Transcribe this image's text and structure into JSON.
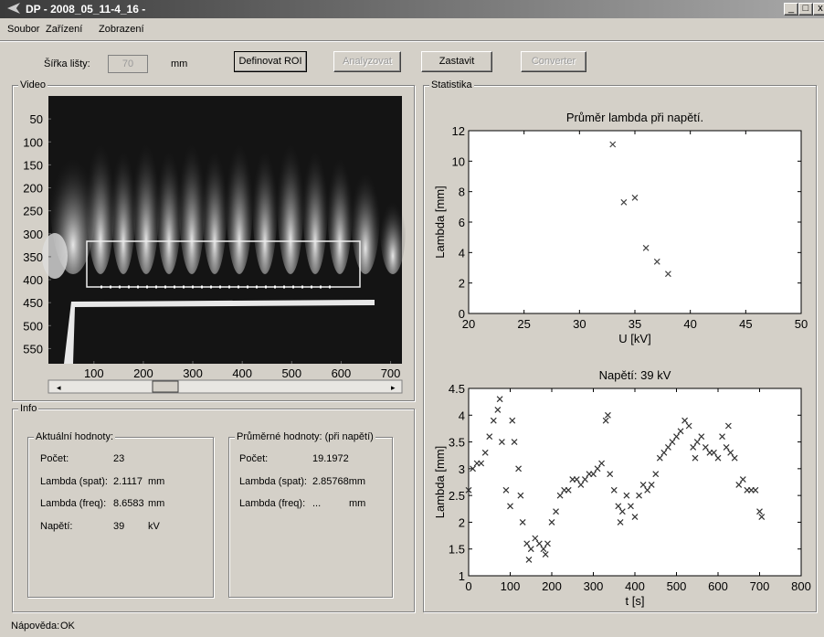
{
  "window": {
    "title": "DP - 2008_05_11-4_16 -"
  },
  "menu": [
    "Soubor",
    "Zařízení",
    "Zobrazení"
  ],
  "toolbar": {
    "width_label": "Šířka lišty:",
    "width_value": "70",
    "width_unit": "mm",
    "buttons": [
      "Definovat ROI",
      "Analyzovat",
      "Zastavit",
      "Converter"
    ]
  },
  "video": {
    "title": "Video",
    "xlim": [
      8,
      723
    ],
    "ylim": [
      0,
      583
    ],
    "xticks": [
      100,
      200,
      300,
      400,
      500,
      600,
      700
    ],
    "yticks": [
      50,
      100,
      150,
      200,
      250,
      300,
      350,
      400,
      450,
      500,
      550
    ]
  },
  "info": {
    "title": "Info",
    "current": {
      "title": "Aktuální hodnoty:",
      "rows": [
        [
          "Počet:",
          "23",
          ""
        ],
        [
          "Lambda (spat):",
          "2.1117",
          "mm"
        ],
        [
          "Lambda (freq):",
          "8.6583",
          "mm"
        ],
        [
          "Napětí:",
          "39",
          "kV"
        ]
      ]
    },
    "average": {
      "title": "Průměrné hodnoty: (při napětí)",
      "rows": [
        [
          "Počet:",
          "19.1972",
          ""
        ],
        [
          "Lambda (spat):",
          "2.85768mm",
          ""
        ],
        [
          "Lambda (freq):",
          "...",
          "mm"
        ]
      ]
    }
  },
  "stats_title": "Statistika",
  "chart_data": [
    {
      "type": "scatter",
      "title": "Průměr lambda při napětí.",
      "x_label": "U [kV]",
      "y_label": "Lambda [mm]",
      "color": "#444444",
      "x": [
        33,
        34,
        35,
        36,
        37,
        38
      ],
      "values": [
        11.1,
        7.3,
        7.6,
        4.3,
        3.4,
        2.6
      ],
      "xlim": [
        20,
        50
      ],
      "ylim": [
        0,
        12
      ],
      "xticks": [
        20,
        25,
        30,
        35,
        40,
        45,
        50
      ],
      "yticks": [
        0,
        2,
        4,
        6,
        8,
        10,
        12
      ]
    },
    {
      "type": "scatter",
      "title": "Napětí: 39 kV",
      "x_label": "t [s]",
      "y_label": "Lambda [mm]",
      "color": "#333333",
      "x": [
        0,
        10,
        20,
        30,
        40,
        50,
        60,
        70,
        75,
        80,
        90,
        100,
        105,
        110,
        120,
        125,
        130,
        140,
        145,
        150,
        160,
        170,
        180,
        185,
        190,
        200,
        210,
        220,
        230,
        240,
        250,
        260,
        270,
        280,
        290,
        300,
        310,
        320,
        330,
        335,
        340,
        350,
        360,
        365,
        370,
        380,
        390,
        400,
        410,
        420,
        430,
        440,
        450,
        460,
        470,
        480,
        490,
        500,
        510,
        520,
        530,
        540,
        545,
        550,
        560,
        570,
        580,
        590,
        600,
        610,
        620,
        625,
        630,
        640,
        650,
        660,
        670,
        680,
        690,
        700,
        705
      ],
      "values": [
        2.6,
        3.0,
        3.1,
        3.1,
        3.3,
        3.6,
        3.9,
        4.1,
        4.3,
        3.5,
        2.6,
        2.3,
        3.9,
        3.5,
        3.0,
        2.5,
        2.0,
        1.6,
        1.3,
        1.5,
        1.7,
        1.6,
        1.5,
        1.4,
        1.6,
        2.0,
        2.2,
        2.5,
        2.6,
        2.6,
        2.8,
        2.8,
        2.7,
        2.8,
        2.9,
        2.9,
        3.0,
        3.1,
        3.9,
        4.0,
        2.9,
        2.6,
        2.3,
        2.0,
        2.2,
        2.5,
        2.3,
        2.1,
        2.5,
        2.7,
        2.6,
        2.7,
        2.9,
        3.2,
        3.3,
        3.4,
        3.5,
        3.6,
        3.7,
        3.9,
        3.8,
        3.4,
        3.2,
        3.5,
        3.6,
        3.4,
        3.3,
        3.3,
        3.2,
        3.6,
        3.4,
        3.8,
        3.3,
        3.2,
        2.7,
        2.8,
        2.6,
        2.6,
        2.6,
        2.2,
        2.1
      ],
      "xlim": [
        0,
        800
      ],
      "ylim": [
        1,
        4.5
      ],
      "xticks": [
        0,
        100,
        200,
        300,
        400,
        500,
        600,
        700,
        800
      ],
      "yticks": [
        1,
        1.5,
        2,
        2.5,
        3,
        3.5,
        4,
        4.5
      ]
    }
  ],
  "status": {
    "label": "Nápověda:",
    "value": "OK"
  }
}
